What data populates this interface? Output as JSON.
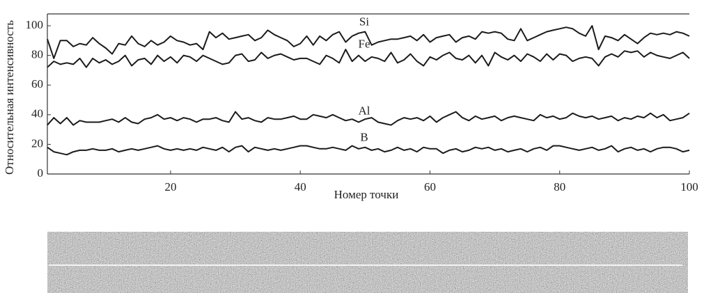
{
  "chart_data": {
    "type": "line",
    "xlabel": "Номер точки",
    "ylabel": "Относительная интенсивность",
    "x": [
      1,
      2,
      3,
      4,
      5,
      6,
      7,
      8,
      9,
      10,
      11,
      12,
      13,
      14,
      15,
      16,
      17,
      18,
      19,
      20,
      21,
      22,
      23,
      24,
      25,
      26,
      27,
      28,
      29,
      30,
      31,
      32,
      33,
      34,
      35,
      36,
      37,
      38,
      39,
      40,
      41,
      42,
      43,
      44,
      45,
      46,
      47,
      48,
      49,
      50,
      51,
      52,
      53,
      54,
      55,
      56,
      57,
      58,
      59,
      60,
      61,
      62,
      63,
      64,
      65,
      66,
      67,
      68,
      69,
      70,
      71,
      72,
      73,
      74,
      75,
      76,
      77,
      78,
      79,
      80,
      81,
      82,
      83,
      84,
      85,
      86,
      87,
      88,
      89,
      90,
      91,
      92,
      93,
      94,
      95,
      96,
      97,
      98,
      99,
      100
    ],
    "xlim": [
      1,
      100
    ],
    "xticks": [
      20,
      40,
      60,
      80,
      100
    ],
    "ylim": [
      0,
      108
    ],
    "yticks": [
      0,
      20,
      40,
      60,
      80,
      100
    ],
    "series": [
      {
        "name": "Si",
        "color": "#1a1a1a",
        "values": [
          91,
          78,
          90,
          90,
          86,
          88,
          87,
          92,
          88,
          85,
          81,
          88,
          87,
          93,
          88,
          86,
          90,
          87,
          89,
          93,
          90,
          89,
          87,
          88,
          84,
          96,
          92,
          95,
          91,
          92,
          93,
          94,
          90,
          92,
          97,
          94,
          92,
          90,
          86,
          88,
          93,
          87,
          93,
          90,
          94,
          96,
          89,
          93,
          95,
          96,
          87,
          89,
          90,
          91,
          91,
          92,
          93,
          90,
          94,
          89,
          92,
          93,
          94,
          89,
          92,
          93,
          91,
          96,
          95,
          96,
          95,
          91,
          90,
          98,
          90,
          92,
          94,
          96,
          97,
          98,
          99,
          98,
          95,
          93,
          100,
          84,
          93,
          92,
          90,
          94,
          91,
          88,
          92,
          95,
          94,
          95,
          94,
          96,
          95,
          93
        ]
      },
      {
        "name": "Fe",
        "color": "#1a1a1a",
        "values": [
          72,
          76,
          74,
          75,
          74,
          78,
          72,
          78,
          75,
          77,
          74,
          76,
          80,
          73,
          77,
          78,
          74,
          80,
          76,
          79,
          75,
          80,
          79,
          76,
          80,
          78,
          76,
          74,
          75,
          80,
          81,
          76,
          77,
          82,
          78,
          80,
          81,
          79,
          77,
          78,
          78,
          76,
          74,
          80,
          78,
          75,
          84,
          76,
          80,
          76,
          79,
          78,
          76,
          82,
          75,
          77,
          81,
          76,
          73,
          79,
          77,
          80,
          82,
          78,
          77,
          80,
          75,
          80,
          73,
          82,
          79,
          77,
          80,
          76,
          81,
          79,
          76,
          81,
          77,
          81,
          80,
          76,
          78,
          79,
          78,
          73,
          79,
          81,
          79,
          83,
          82,
          83,
          79,
          82,
          80,
          79,
          78,
          80,
          82,
          78
        ]
      },
      {
        "name": "Al",
        "color": "#1a1a1a",
        "values": [
          33,
          38,
          34,
          38,
          33,
          36,
          35,
          35,
          35,
          36,
          37,
          35,
          38,
          35,
          34,
          37,
          38,
          40,
          37,
          38,
          36,
          38,
          37,
          35,
          37,
          37,
          38,
          36,
          35,
          42,
          37,
          38,
          36,
          35,
          38,
          37,
          37,
          38,
          39,
          37,
          37,
          40,
          39,
          38,
          40,
          38,
          36,
          37,
          35,
          37,
          38,
          35,
          34,
          33,
          36,
          38,
          37,
          38,
          36,
          39,
          35,
          38,
          40,
          42,
          38,
          36,
          39,
          37,
          38,
          39,
          36,
          38,
          39,
          38,
          37,
          36,
          40,
          38,
          39,
          37,
          38,
          41,
          39,
          38,
          39,
          37,
          38,
          39,
          36,
          38,
          37,
          39,
          38,
          41,
          38,
          40,
          36,
          37,
          38,
          41
        ]
      },
      {
        "name": "B",
        "color": "#1a1a1a",
        "values": [
          18,
          15,
          14,
          13,
          15,
          16,
          16,
          17,
          16,
          16,
          17,
          15,
          16,
          17,
          16,
          17,
          18,
          19,
          17,
          16,
          17,
          16,
          17,
          16,
          18,
          17,
          16,
          18,
          15,
          18,
          19,
          15,
          18,
          17,
          16,
          17,
          16,
          17,
          18,
          19,
          19,
          18,
          17,
          17,
          18,
          17,
          16,
          19,
          17,
          18,
          16,
          17,
          15,
          16,
          18,
          16,
          17,
          15,
          18,
          17,
          17,
          14,
          16,
          17,
          15,
          16,
          18,
          17,
          18,
          16,
          17,
          15,
          16,
          17,
          15,
          17,
          18,
          16,
          19,
          19,
          18,
          17,
          16,
          17,
          18,
          16,
          17,
          19,
          15,
          17,
          18,
          16,
          17,
          15,
          17,
          18,
          18,
          17,
          15,
          16
        ]
      }
    ]
  }
}
